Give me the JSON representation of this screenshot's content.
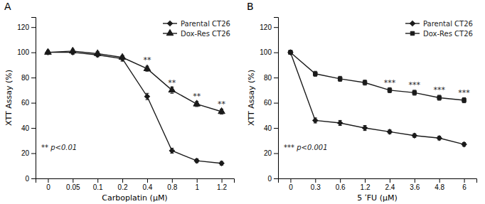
{
  "chart_data": [
    {
      "type": "line",
      "title": "A",
      "x_label": "Carboplatin (μM)",
      "y_label": "XTT Assay (%)",
      "categories": [
        "0",
        "0.05",
        "0.1",
        "0.2",
        "0.4",
        "0.8",
        "1",
        "1.2"
      ],
      "ylim": [
        0,
        128
      ],
      "yticks": [
        0,
        20,
        40,
        60,
        80,
        100,
        120
      ],
      "legend": "upper right",
      "series": [
        {
          "name": "Parental CT26",
          "color": "#1a1a1a",
          "marker": "diamond",
          "line_style": "solid",
          "values": [
            100,
            100,
            98,
            95,
            65,
            22,
            14,
            12
          ],
          "errors": [
            1.5,
            1.5,
            1.5,
            2,
            2.5,
            2,
            1.5,
            1.5
          ]
        },
        {
          "name": "Dox-Res CT26",
          "color": "#1a1a1a",
          "marker": "triangle",
          "line_style": "solid",
          "values": [
            100,
            101,
            99,
            96,
            87,
            70,
            59,
            53
          ],
          "errors": [
            1.5,
            1.5,
            1.5,
            1.5,
            2,
            2.5,
            2,
            2
          ]
        }
      ],
      "annotations": [
        {
          "text": "** p<0.01"
        },
        {
          "text": "**",
          "x": "0.4",
          "y": 92
        },
        {
          "text": "**",
          "x": "0.8",
          "y": 74
        },
        {
          "text": "**",
          "x": "1",
          "y": 63
        },
        {
          "text": "**",
          "x": "1.2",
          "y": 57
        }
      ]
    },
    {
      "type": "line",
      "title": "B",
      "x_label": "5 ʹFU (μM)",
      "y_label": "XTT Assay (%)",
      "categories": [
        "0",
        "0.3",
        "0.6",
        "1.2",
        "2.4",
        "3.6",
        "4.8",
        "6"
      ],
      "ylim": [
        0,
        128
      ],
      "yticks": [
        0,
        20,
        40,
        60,
        80,
        100,
        120
      ],
      "legend": "upper right",
      "series": [
        {
          "name": "Parental CT26",
          "color": "#1a1a1a",
          "marker": "diamond",
          "line_style": "solid",
          "values": [
            100,
            46,
            44,
            40,
            37,
            34,
            32,
            27
          ],
          "errors": [
            1.5,
            2,
            2,
            2,
            1.5,
            1.5,
            1.5,
            1.5
          ]
        },
        {
          "name": "Dox-Res CT26",
          "color": "#1a1a1a",
          "marker": "square",
          "line_style": "solid",
          "values": [
            100,
            83,
            79,
            76,
            70,
            68,
            64,
            62
          ],
          "errors": [
            1.5,
            2,
            2,
            2,
            2,
            2,
            2,
            2
          ]
        }
      ],
      "annotations": [
        {
          "text": "*** p<0.001"
        },
        {
          "text": "***",
          "x": "2.4",
          "y": 74
        },
        {
          "text": "***",
          "x": "3.6",
          "y": 72
        },
        {
          "text": "***",
          "x": "4.8",
          "y": 68
        },
        {
          "text": "***",
          "x": "6",
          "y": 66
        }
      ]
    }
  ]
}
